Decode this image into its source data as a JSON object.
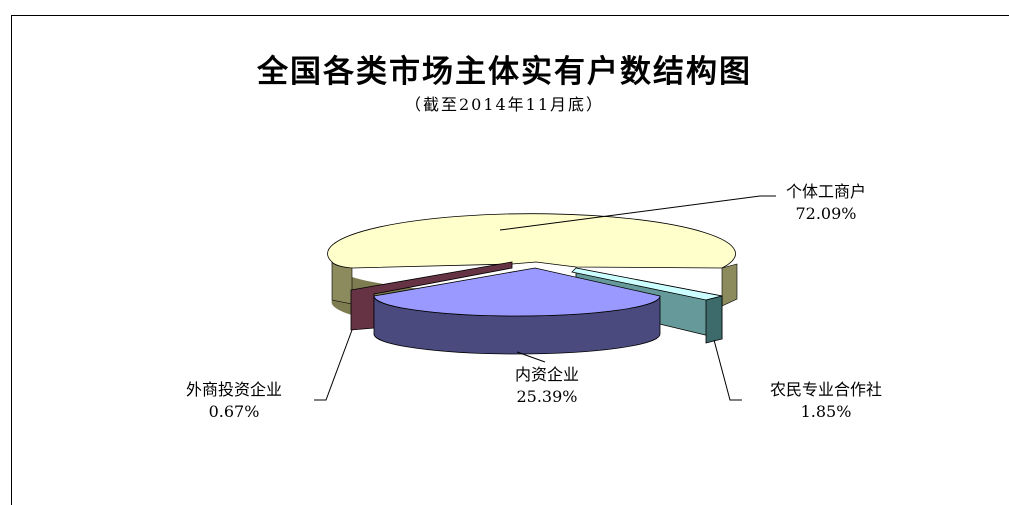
{
  "chart_data": {
    "type": "pie",
    "title": "全国各类市场主体实有户数结构图",
    "subtitle": "（截至2014年11月底）",
    "slices": [
      {
        "label": "个体工商户",
        "value": 72.09,
        "value_label": "72.09%",
        "color": "#ffffcc"
      },
      {
        "label": "内资企业",
        "value": 25.39,
        "value_label": "25.39%",
        "color": "#9999ff"
      },
      {
        "label": "外商投资企业",
        "value": 0.67,
        "value_label": "0.67%",
        "color": "#993366"
      },
      {
        "label": "农民专业合作社",
        "value": 1.85,
        "value_label": "1.85%",
        "color": "#ccffff"
      }
    ],
    "legend": "none",
    "style": "exploded-3d"
  }
}
